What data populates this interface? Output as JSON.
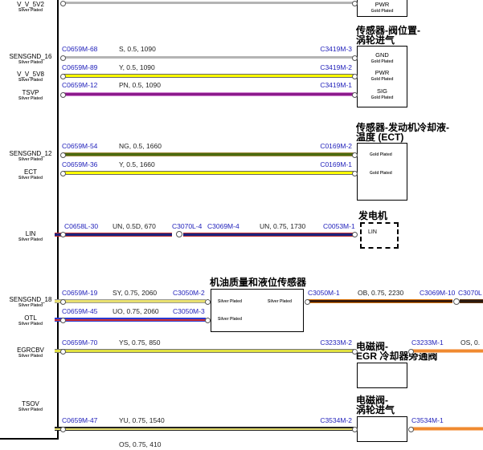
{
  "ecu_pins": [
    {
      "name": "V_V_5V2",
      "plating": "Silver Plated"
    },
    {
      "name": "SENSGND_16",
      "plating": "Silver Plated"
    },
    {
      "name": "V_V_5V8",
      "plating": "Silver Plated"
    },
    {
      "name": "TSVP",
      "plating": "Silver Plated"
    },
    {
      "name": "SENSGND_12",
      "plating": "Silver Plated"
    },
    {
      "name": "ECT",
      "plating": "Silver Plated"
    },
    {
      "name": "LIN",
      "plating": "Silver Plated"
    },
    {
      "name": "SENSGND_18",
      "plating": "Silver Plated"
    },
    {
      "name": "OTL",
      "plating": "Silver Plated"
    },
    {
      "name": "EGRCBV",
      "plating": "Silver Plated"
    },
    {
      "name": "TSOV",
      "plating": "Silver Plated"
    }
  ],
  "wires": [
    {
      "from": "C0659M-68",
      "spec": "S, 0.5, 1090",
      "to": "C3419M-3",
      "color": "#b4b4b4"
    },
    {
      "from": "C0659M-89",
      "spec": "Y, 0.5, 1090",
      "to": "C3419M-2",
      "color": "#ffff00"
    },
    {
      "from": "C0659M-12",
      "spec": "PN, 0.5, 1090",
      "to": "C3419M-1",
      "color": "#8b1a8b"
    },
    {
      "from": "C0659M-54",
      "spec": "NG, 0.5, 1660",
      "to": "C0169M-2",
      "color": "#4a6a10"
    },
    {
      "from": "C0659M-36",
      "spec": "Y, 0.5, 1660",
      "to": "C0169M-1",
      "color": "#ffff00"
    },
    {
      "from": "C0658L-30",
      "spec": "UN, 0.5D, 670",
      "to": "C3070L-4",
      "color": "#1a237e"
    },
    {
      "from": "C3069M-4",
      "spec": "UN, 0.75, 1730",
      "to": "C0053M-1",
      "color": "#1a237e"
    },
    {
      "from": "C0659M-19",
      "spec": "SY, 0.75, 2060",
      "to": "C3050M-2",
      "color": "#e8e070"
    },
    {
      "from": "C0659M-45",
      "spec": "UO, 0.75, 2060",
      "to": "C3050M-3",
      "color": "#2a3ad0"
    },
    {
      "from": "C3050M-1",
      "spec": "OB, 0.75, 2230",
      "to": "C3069M-10",
      "next": "C3070L",
      "color": "#e07a10"
    },
    {
      "from": "C0659M-70",
      "spec": "YS, 0.75, 850",
      "to": "C3233M-2",
      "color": "#e0e040"
    },
    {
      "from": "C3233M-1",
      "spec": "OS, 0.",
      "color": "#f08a30"
    },
    {
      "from": "C0659M-47",
      "spec": "YU, 0.75, 1540",
      "to": "C3534M-2",
      "color": "#e8e070"
    },
    {
      "from": "C3534M-1",
      "spec": "OS, 0.75, 410",
      "color": "#f08a30"
    }
  ],
  "components": {
    "top_partial": {
      "pin": "PWR",
      "plating": "Gold Plated"
    },
    "valve_position_sensor": {
      "title1": "传感器-阀位置-",
      "title2": "涡轮进气",
      "pins": [
        {
          "name": "GND",
          "plating": "Gold Plated"
        },
        {
          "name": "PWR",
          "plating": "Gold Plated"
        },
        {
          "name": "SIG",
          "plating": "Gold Plated"
        }
      ]
    },
    "ect_sensor": {
      "title1": "传感器-发动机冷却液-",
      "title2": "温度 (ECT)",
      "pins": [
        {
          "plating": "Gold Plated"
        },
        {
          "plating": "Gold Plated"
        }
      ]
    },
    "generator": {
      "title": "发电机",
      "pin": "LIN"
    },
    "oil_sensor": {
      "title": "机油质量和液位传感器",
      "pins": [
        {
          "plating": "Silver Plated"
        },
        {
          "plating": "Silver Plated"
        },
        {
          "plating": "Silver Plated"
        }
      ]
    },
    "egr_valve": {
      "title1": "电磁阀-",
      "title2": "EGR 冷却器旁通阀"
    },
    "turbo_valve": {
      "title1": "电磁阀-",
      "title2": "涡轮进气"
    }
  }
}
